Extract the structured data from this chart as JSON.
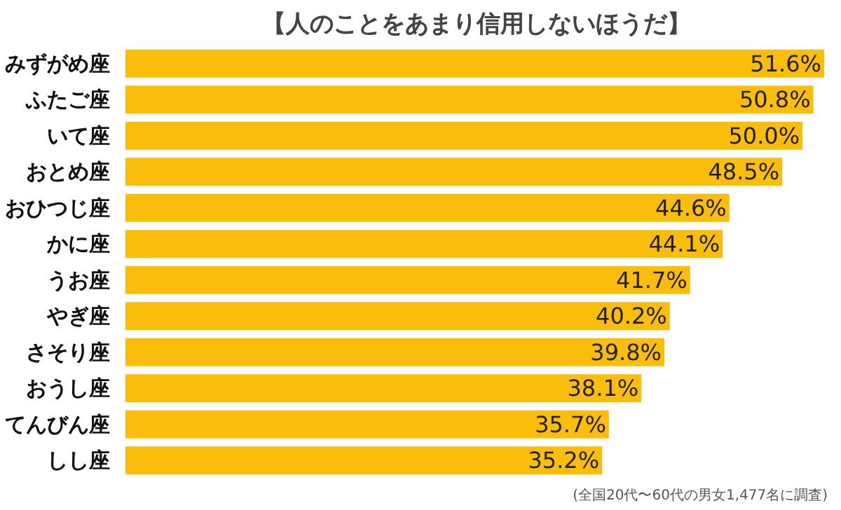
{
  "chart_data": {
    "type": "bar",
    "orientation": "horizontal",
    "title": "【人のことをあまり信用しないほうだ】",
    "categories": [
      "みずがめ座",
      "ふたご座",
      "いて座",
      "おとめ座",
      "おひつじ座",
      "かに座",
      "うお座",
      "やぎ座",
      "さそり座",
      "おうし座",
      "てんびん座",
      "しし座"
    ],
    "values": [
      51.6,
      50.8,
      50.0,
      48.5,
      44.6,
      44.1,
      41.7,
      40.2,
      39.8,
      38.1,
      35.7,
      35.2
    ],
    "value_labels": [
      "51.6%",
      "50.8%",
      "50.0%",
      "48.5%",
      "44.6%",
      "44.1%",
      "41.7%",
      "40.2%",
      "39.8%",
      "38.1%",
      "35.7%",
      "35.2%"
    ],
    "color": "#fbbd0b",
    "tick_labels": false,
    "grid": false,
    "annotations": [
      "(全国20代〜60代の男女1,477名に調査)"
    ]
  }
}
